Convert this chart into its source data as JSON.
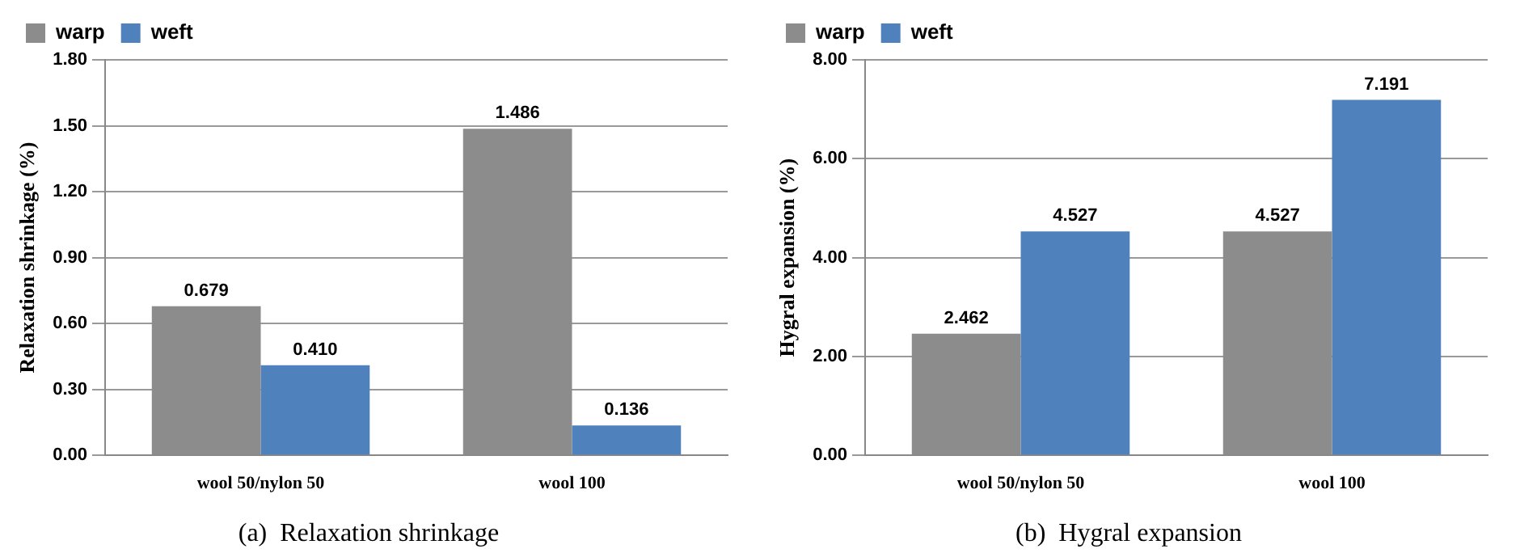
{
  "chart_data": [
    {
      "type": "bar",
      "title": "(a)  Relaxation shrinkage",
      "ylabel": "Relaxation shrinkage (%)",
      "categories": [
        "wool 50/nylon 50",
        "wool 100"
      ],
      "series": [
        {
          "name": "warp",
          "color": "#8c8c8c",
          "values": [
            0.679,
            1.486
          ],
          "value_labels": [
            "0.679",
            "1.486"
          ]
        },
        {
          "name": "weft",
          "color": "#4f81bd",
          "values": [
            0.41,
            0.136
          ],
          "value_labels": [
            "0.410",
            "0.136"
          ]
        }
      ],
      "ylim": [
        0,
        1.8
      ],
      "yticks": [
        {
          "value": 0,
          "label": "0.00"
        },
        {
          "value": 0.3,
          "label": "0.30"
        },
        {
          "value": 0.6,
          "label": "0.60"
        },
        {
          "value": 0.9,
          "label": "0.90"
        },
        {
          "value": 1.2,
          "label": "1.20"
        },
        {
          "value": 1.5,
          "label": "1.50"
        },
        {
          "value": 1.8,
          "label": "1.80"
        }
      ],
      "grid": "y",
      "legend": "top left"
    },
    {
      "type": "bar",
      "title": "(b)  Hygral expansion",
      "ylabel": "Hygral expansion (%)",
      "categories": [
        "wool 50/nylon 50",
        "wool 100"
      ],
      "series": [
        {
          "name": "warp",
          "color": "#8c8c8c",
          "values": [
            2.462,
            4.527
          ]
        },
        {
          "name": "weft",
          "color": "#4f81bd",
          "values": [
            4.527,
            7.191
          ]
        }
      ],
      "ylim": [
        0,
        8
      ],
      "yticks": [
        {
          "value": 0,
          "label": "0.00"
        },
        {
          "value": 2,
          "label": "2.00"
        },
        {
          "value": 4,
          "label": "4.00"
        },
        {
          "value": 6,
          "label": "6.00"
        },
        {
          "value": 8,
          "label": "8.00"
        }
      ],
      "grid": "y",
      "legend": "top left",
      "data_labels": true
    }
  ]
}
